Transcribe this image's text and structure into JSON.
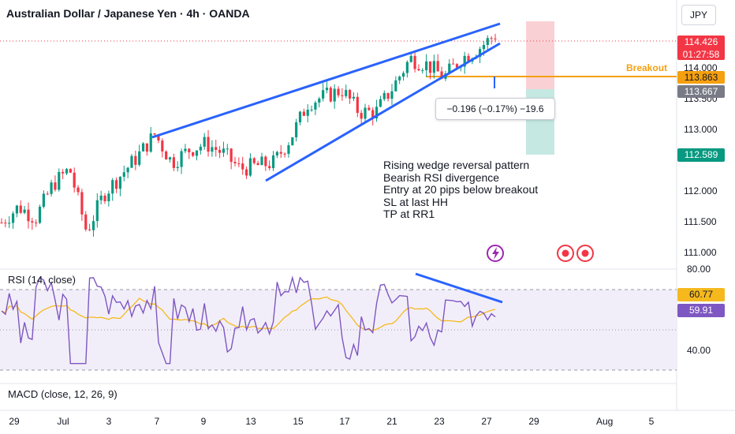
{
  "header": {
    "title": "Australian Dollar / Japanese Yen · 4h · OANDA",
    "currency": "JPY"
  },
  "chart_data": [
    {
      "type": "candlestick",
      "title": "Australian Dollar / Japanese Yen · 4h · OANDA",
      "x_ticks": [
        "29",
        "Jul",
        "3",
        "7",
        "9",
        "13",
        "15",
        "17",
        "21",
        "23",
        "27",
        "29",
        "Aug",
        "5"
      ],
      "y_ticks": [
        "111.000",
        "111.500",
        "112.000",
        "113.000",
        "113.500",
        "114.000"
      ],
      "ylim": [
        110.85,
        114.6
      ],
      "price_points": [
        [
          "Jun 27",
          111.45
        ],
        [
          "Jun 28",
          111.7
        ],
        [
          "Jun 29",
          111.52
        ],
        [
          "Jun 30",
          112.05
        ],
        [
          "Jul 1",
          112.3
        ],
        [
          "Jul 2",
          111.3
        ],
        [
          "Jul 3",
          111.9
        ],
        [
          "Jul 4",
          112.2
        ],
        [
          "Jul 5",
          112.5
        ],
        [
          "Jul 7",
          112.85
        ],
        [
          "Jul 8",
          112.4
        ],
        [
          "Jul 9",
          112.6
        ],
        [
          "Jul 10",
          112.7
        ],
        [
          "Jul 11",
          112.55
        ],
        [
          "Jul 12",
          112.3
        ],
        [
          "Jul 13",
          112.35
        ],
        [
          "Jul 14",
          112.4
        ],
        [
          "Jul 15",
          112.8
        ],
        [
          "Jul 16",
          113.35
        ],
        [
          "Jul 17",
          113.45
        ],
        [
          "Jul 18",
          113.55
        ],
        [
          "Jul 19",
          113.2
        ],
        [
          "Jul 20",
          113.2
        ],
        [
          "Jul 21",
          113.6
        ],
        [
          "Jul 22",
          114.05
        ],
        [
          "Jul 23",
          113.95
        ],
        [
          "Jul 24",
          113.75
        ],
        [
          "Jul 25",
          114.05
        ],
        [
          "Jul 26",
          114.2
        ],
        [
          "Jul 27",
          114.426
        ]
      ],
      "current_price": "114.426",
      "countdown": "01:27:58",
      "breakout_level": "113.863",
      "breakout_label": "Breakout",
      "entry_price": "113.667",
      "target_price": "112.589",
      "measure_label": "−0.196 (−0.17%) −19.6",
      "pattern": "rising wedge",
      "annotations": [
        "Rising wedge reversal pattern",
        "Bearish RSI divergence",
        "Entry at 20 pips below breakout",
        "SL at last HH",
        "TP at RR1"
      ]
    },
    {
      "type": "line",
      "title": "RSI (14, close)",
      "y_ticks": [
        "80.00",
        "40.00"
      ],
      "ylim": [
        26,
        80
      ],
      "bands": [
        70,
        30
      ],
      "series": [
        {
          "name": "RSI",
          "color": "#7e57c2",
          "last": "59.91"
        },
        {
          "name": "RSI-based MA",
          "color": "#f5b91e",
          "last": "60.77"
        }
      ]
    },
    {
      "type": "line",
      "title": "MACD (close, 12, 26, 9)",
      "values_visible": false
    }
  ],
  "colors": {
    "up": "#089981",
    "down": "#f23645",
    "trendline": "#2962ff",
    "breakout": "#f5a010",
    "rsi": "#7e57c2",
    "rsi_ma": "#f5b91e",
    "stop_zone": "#f7c6ca",
    "target_zone": "#bfe6df"
  },
  "icons": [
    "lightning-event-icon",
    "economic-event-icon",
    "economic-event-icon"
  ]
}
